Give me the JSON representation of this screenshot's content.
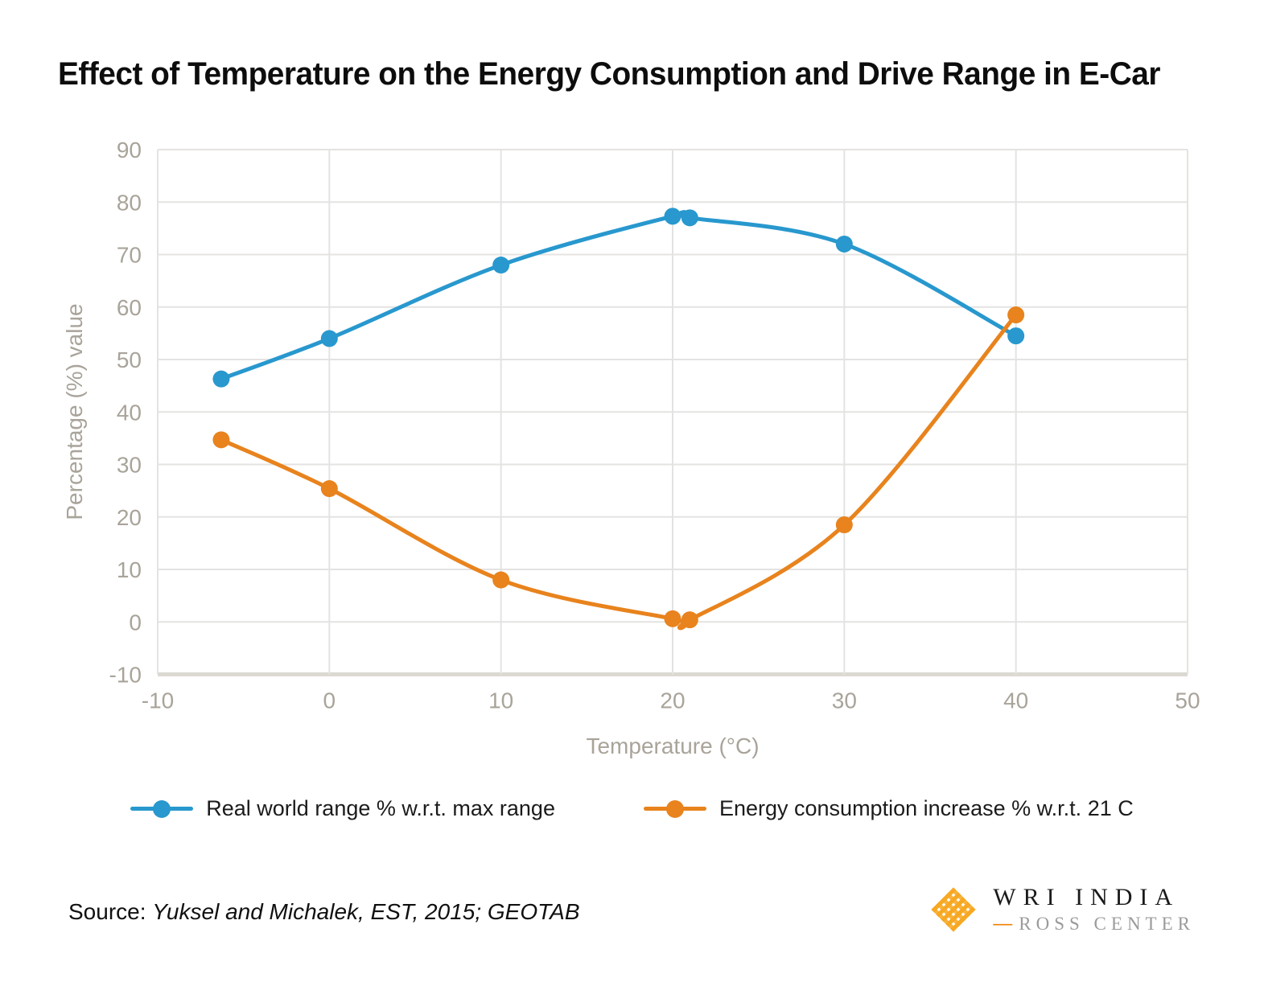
{
  "title": "Effect of Temperature on the Energy Consumption and Drive Range in E-Car",
  "chart_data": {
    "type": "line",
    "title": "Effect of Temperature on the Energy Consumption and Drive Range in E-Car",
    "xlabel": "Temperature (°C)",
    "ylabel": "Percentage  (%) value",
    "xlim": [
      -10,
      50
    ],
    "ylim": [
      -10,
      90
    ],
    "xticks": [
      -10,
      0,
      10,
      20,
      30,
      40,
      50
    ],
    "yticks": [
      90,
      80,
      70,
      60,
      50,
      40,
      30,
      20,
      10,
      0,
      -10
    ],
    "grid": true,
    "legend_position": "bottom",
    "x": [
      -6.3,
      0,
      10,
      20,
      21,
      30,
      40
    ],
    "series": [
      {
        "name": "Real world range % w.r.t. max range",
        "color": "#2898CE",
        "values": [
          46.3,
          54,
          68,
          77.3,
          77,
          72,
          54.5
        ]
      },
      {
        "name": "Energy consumption increase % w.r.t. 21 C",
        "color": "#E8831D",
        "values": [
          34.7,
          25.4,
          8,
          0.6,
          0.4,
          18.5,
          58.5
        ]
      }
    ]
  },
  "footer": {
    "source_prefix": "Source: ",
    "source_text": "Yuksel and Michalek, EST, 2015; GEOTAB",
    "logo_line1": "WRI INDIA",
    "logo_dash": "—",
    "logo_line2": "ROSS CENTER",
    "logo_mark_color": "#F7A823"
  },
  "style": {
    "grid_color": "#e4e3e1",
    "axis_bottom_color": "#dcd9d3",
    "tick_color": "#a9a49a"
  }
}
